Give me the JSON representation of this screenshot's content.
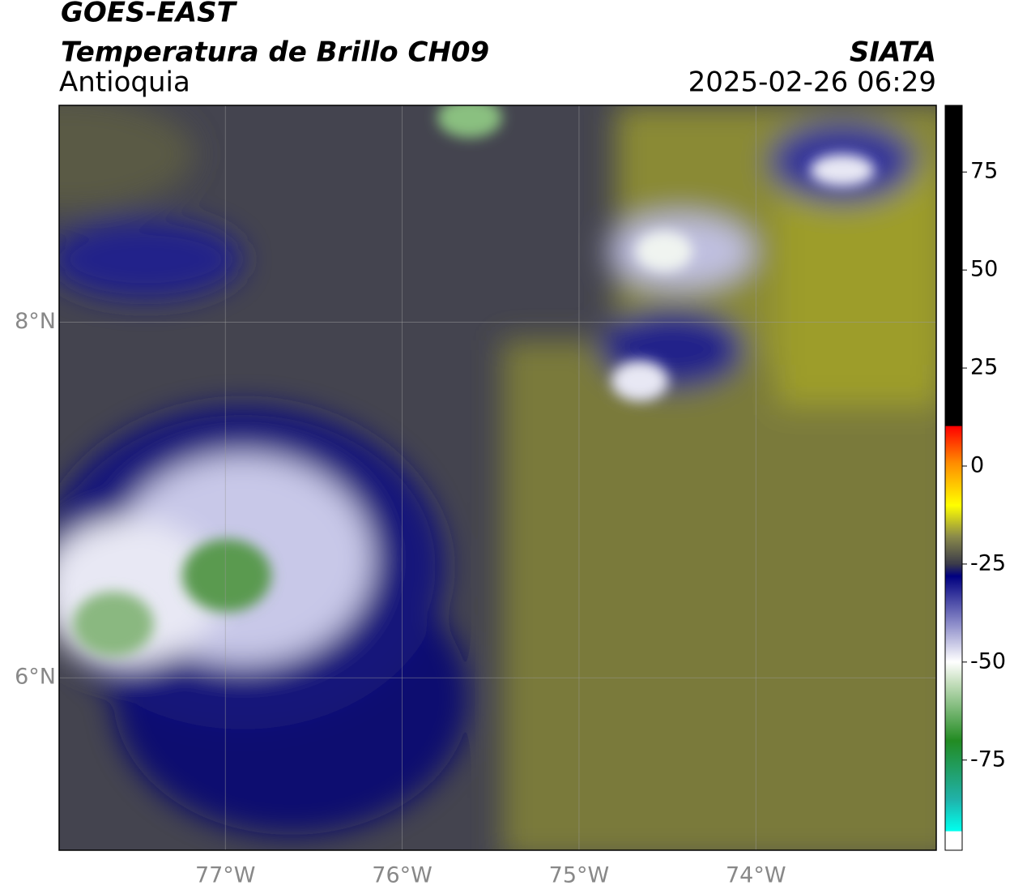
{
  "header": {
    "title": "GOES-EAST",
    "subtitle": "Temperatura de Brillo CH09",
    "region": "Antioquia",
    "source": "SIATA",
    "datetime": "2025-02-26 06:29"
  },
  "map": {
    "lonlim": [
      -77.94,
      -72.98
    ],
    "latlim": [
      5.03,
      9.22
    ],
    "lonticks": [
      {
        "value": -77,
        "label": "77°W"
      },
      {
        "value": -76,
        "label": "76°W"
      },
      {
        "value": -75,
        "label": "75°W"
      },
      {
        "value": -74,
        "label": "74°W"
      }
    ],
    "latticks": [
      {
        "value": 8,
        "label": "8°N"
      },
      {
        "value": 6,
        "label": "6°N"
      }
    ]
  },
  "colorbar": {
    "lim": [
      -98,
      92
    ],
    "ticks": [
      75,
      50,
      25,
      0,
      -25,
      -50,
      -75
    ]
  }
}
